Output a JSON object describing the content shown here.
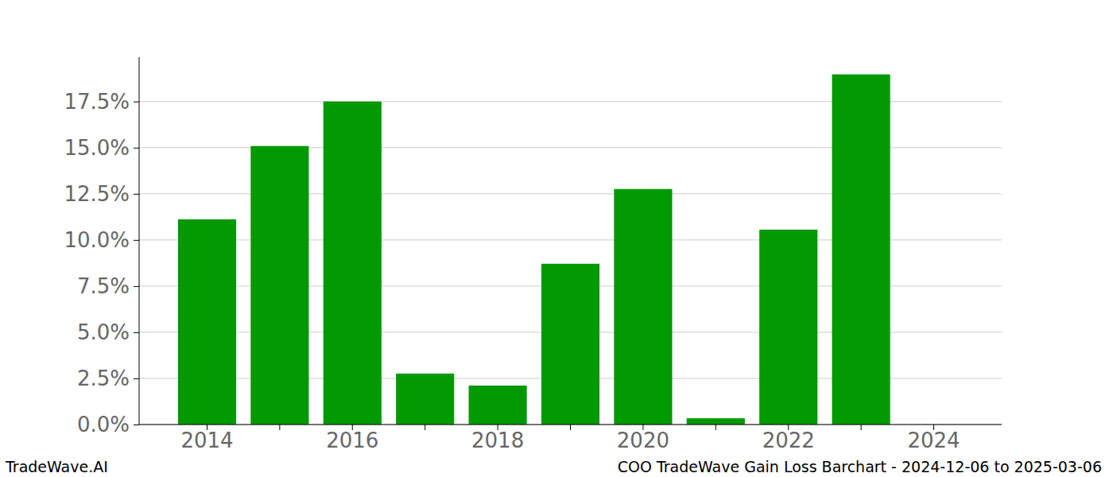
{
  "chart_data": {
    "type": "bar",
    "title": "COO TradeWave Gain Loss Barchart - 2024-12-06 to 2025-03-06",
    "annotations": [
      "TradeWave.AI"
    ],
    "categories": [
      "2014",
      null,
      "2016",
      null,
      "2018",
      null,
      "2020",
      null,
      "2022",
      null,
      "2024"
    ],
    "values": [
      11.12,
      15.09,
      17.5,
      2.76,
      2.11,
      8.71,
      12.76,
      0.34,
      10.56,
      18.97,
      0
    ],
    "color": "#009900",
    "ylim": [
      0,
      19.9
    ],
    "yticks": [
      {
        "value": 0,
        "label": "0.0%"
      },
      {
        "value": 2.5,
        "label": "2.5%"
      },
      {
        "value": 5,
        "label": "5.0%"
      },
      {
        "value": 7.5,
        "label": "7.5%"
      },
      {
        "value": 10,
        "label": "10.0%"
      },
      {
        "value": 12.5,
        "label": "12.5%"
      },
      {
        "value": 15,
        "label": "15.0%"
      },
      {
        "value": 17.5,
        "label": "17.5%"
      }
    ],
    "grid": true
  }
}
